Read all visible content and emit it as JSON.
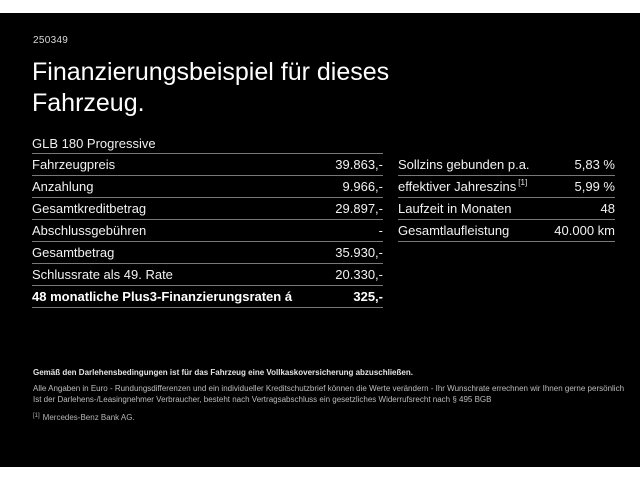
{
  "page": {
    "ref_number": "250349",
    "title_line1": "Finanzierungsbeispiel für dieses",
    "title_line2": "Fahrzeug.",
    "model": "GLB 180 Progressive"
  },
  "finance_table": {
    "rows": [
      {
        "label": "Fahrzeugpreis",
        "value": "39.863,-",
        "bold": false
      },
      {
        "label": "Anzahlung",
        "value": "9.966,-",
        "bold": false
      },
      {
        "label": "Gesamtkreditbetrag",
        "value": "29.897,-",
        "bold": false
      },
      {
        "label": "Abschlussgebühren",
        "value": "-",
        "bold": false
      },
      {
        "label": "Gesamtbetrag",
        "value": "35.930,-",
        "bold": false
      },
      {
        "label": "Schlussrate als 49. Rate",
        "value": "20.330,-",
        "bold": false
      },
      {
        "label": "48 monatliche Plus3-Finanzierungsraten á",
        "value": "325,-",
        "bold": true
      }
    ]
  },
  "conditions_table": {
    "rows": [
      {
        "label": "Sollzins gebunden p.a.",
        "sup": "",
        "value": "5,83 %"
      },
      {
        "label": "effektiver Jahreszins",
        "sup": "[1]",
        "value": "5,99 %"
      },
      {
        "label": "Laufzeit in Monaten",
        "sup": "",
        "value": "48"
      },
      {
        "label": "Gesamtlaufleistung",
        "sup": "",
        "value": "40.000 km"
      }
    ]
  },
  "disclaimer": {
    "bold_line": "Gemäß den Darlehensbedingungen ist für das Fahrzeug eine Vollkaskoversicherung abzuschließen.",
    "line2": "Alle Angaben in Euro - Rundungsdifferenzen und ein individueller Kreditschutzbrief können die Werte verändern - Ihr Wunschrate errechnen wir Ihnen gerne persönlich",
    "line3": "Ist der Darlehens-/Leasingnehmer Verbraucher, besteht nach Vertragsabschluss ein gesetzliches Widerrufsrecht nach § 495 BGB",
    "footnote_marker": "[1]",
    "footnote_text": "Mercedes-Benz Bank AG."
  },
  "colors": {
    "background": "#000000",
    "frame": "#ffffff",
    "text": "#f5f5f5",
    "divider": "#787878",
    "muted": "#c9c9c9"
  }
}
